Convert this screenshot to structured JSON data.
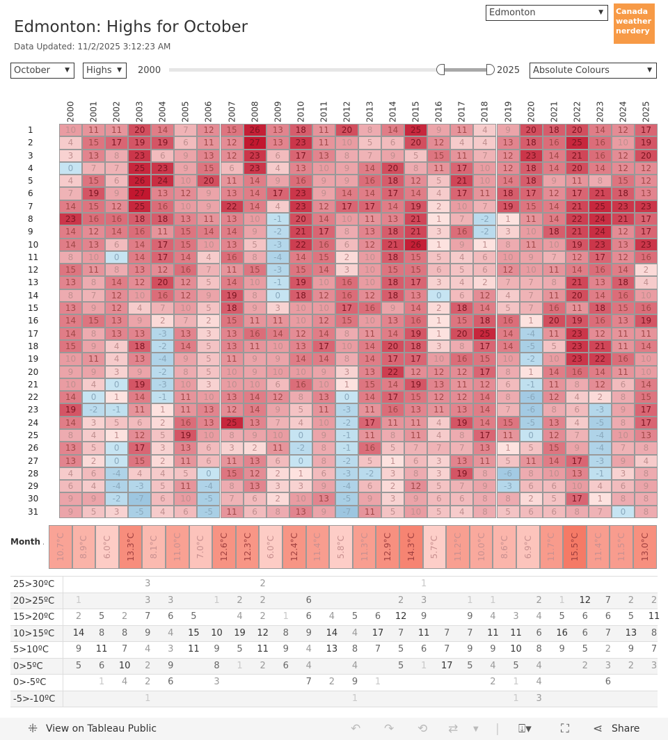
{
  "header": {
    "title": "Edmonton: Highs for October",
    "updated": "Data Updated: 11/2/2025 3:12:23 AM",
    "logo_text": "Canada weather nerdery",
    "logo_color": "#f79a46"
  },
  "controls": {
    "city": "Edmonton",
    "month": "October",
    "measure": "Highs",
    "slider_min_label": "2000",
    "slider_max_label": "2025",
    "colour_mode": "Absolute Colours"
  },
  "years": [
    "2000",
    "2001",
    "2002",
    "2003",
    "2004",
    "2005",
    "2006",
    "2007",
    "2008",
    "2009",
    "2010",
    "2011",
    "2012",
    "2013",
    "2014",
    "2015",
    "2016",
    "2017",
    "2018",
    "2019",
    "2020",
    "2021",
    "2022",
    "2023",
    "2024",
    "2025"
  ],
  "days": [
    "1",
    "2",
    "3",
    "4",
    "5",
    "6",
    "7",
    "8",
    "9",
    "10",
    "11",
    "12",
    "13",
    "14",
    "15",
    "16",
    "17",
    "18",
    "19",
    "20",
    "21",
    "22",
    "23",
    "24",
    "25",
    "26",
    "27",
    "28",
    "29",
    "30",
    "31"
  ],
  "heatmap": [
    [
      10,
      11,
      11,
      20,
      14,
      7,
      12,
      15,
      26,
      13,
      18,
      11,
      20,
      8,
      14,
      25,
      9,
      11,
      4,
      9,
      20,
      18,
      20,
      14,
      12,
      17
    ],
    [
      4,
      15,
      17,
      19,
      19,
      6,
      11,
      12,
      27,
      13,
      23,
      11,
      10,
      5,
      6,
      20,
      12,
      4,
      4,
      13,
      18,
      16,
      25,
      16,
      10,
      19
    ],
    [
      3,
      13,
      8,
      23,
      6,
      9,
      13,
      12,
      23,
      6,
      17,
      13,
      8,
      7,
      9,
      5,
      15,
      11,
      7,
      12,
      23,
      14,
      21,
      16,
      12,
      20
    ],
    [
      0,
      7,
      7,
      25,
      23,
      9,
      15,
      6,
      23,
      4,
      13,
      10,
      9,
      14,
      20,
      8,
      11,
      17,
      10,
      12,
      18,
      14,
      20,
      14,
      12,
      12
    ],
    [
      4,
      15,
      6,
      26,
      24,
      10,
      20,
      11,
      14,
      9,
      16,
      9,
      9,
      16,
      18,
      12,
      5,
      21,
      10,
      14,
      18,
      9,
      11,
      8,
      15,
      12
    ],
    [
      7,
      19,
      9,
      27,
      13,
      12,
      9,
      13,
      14,
      17,
      23,
      9,
      14,
      14,
      17,
      14,
      4,
      17,
      11,
      18,
      17,
      12,
      17,
      21,
      18,
      13
    ],
    [
      14,
      15,
      12,
      25,
      16,
      10,
      9,
      22,
      14,
      4,
      23,
      12,
      17,
      17,
      14,
      19,
      2,
      10,
      7,
      19,
      15,
      14,
      21,
      25,
      23,
      23
    ],
    [
      23,
      16,
      16,
      18,
      18,
      13,
      11,
      13,
      10,
      -1,
      20,
      14,
      10,
      11,
      13,
      21,
      1,
      7,
      -2,
      1,
      11,
      14,
      22,
      24,
      21,
      17
    ],
    [
      14,
      12,
      14,
      16,
      11,
      15,
      14,
      14,
      9,
      -2,
      21,
      17,
      8,
      13,
      18,
      21,
      3,
      16,
      -2,
      3,
      10,
      18,
      21,
      24,
      12,
      17
    ],
    [
      14,
      13,
      6,
      14,
      17,
      15,
      10,
      13,
      5,
      -3,
      22,
      16,
      6,
      12,
      21,
      26,
      1,
      9,
      1,
      8,
      11,
      10,
      19,
      23,
      13,
      23
    ],
    [
      8,
      10,
      0,
      14,
      17,
      14,
      4,
      16,
      8,
      -4,
      14,
      15,
      2,
      10,
      18,
      15,
      5,
      4,
      6,
      10,
      9,
      7,
      12,
      17,
      12,
      16
    ],
    [
      15,
      11,
      8,
      13,
      12,
      16,
      7,
      11,
      15,
      -3,
      15,
      14,
      3,
      10,
      15,
      15,
      6,
      5,
      6,
      12,
      10,
      11,
      14,
      16,
      14,
      2
    ],
    [
      13,
      8,
      14,
      12,
      20,
      12,
      5,
      14,
      10,
      -1,
      19,
      10,
      16,
      10,
      18,
      17,
      3,
      4,
      2,
      7,
      7,
      8,
      21,
      13,
      18,
      4
    ],
    [
      8,
      7,
      12,
      10,
      16,
      12,
      9,
      19,
      8,
      0,
      18,
      12,
      16,
      12,
      18,
      13,
      0,
      6,
      12,
      4,
      7,
      11,
      20,
      14,
      16,
      10
    ],
    [
      13,
      9,
      12,
      4,
      7,
      10,
      5,
      18,
      9,
      3,
      10,
      10,
      17,
      16,
      9,
      14,
      2,
      18,
      14,
      5,
      7,
      16,
      11,
      18,
      15,
      16
    ],
    [
      14,
      15,
      13,
      9,
      2,
      7,
      2,
      15,
      11,
      11,
      10,
      12,
      15,
      10,
      13,
      16,
      1,
      15,
      18,
      16,
      1,
      20,
      19,
      16,
      13,
      19
    ],
    [
      14,
      8,
      13,
      13,
      -3,
      13,
      3,
      13,
      16,
      14,
      12,
      14,
      8,
      11,
      14,
      19,
      1,
      20,
      25,
      14,
      -4,
      11,
      23,
      12,
      11,
      11
    ],
    [
      15,
      9,
      4,
      18,
      -2,
      14,
      5,
      13,
      11,
      10,
      13,
      17,
      10,
      14,
      20,
      18,
      3,
      8,
      17,
      14,
      -5,
      5,
      23,
      21,
      11,
      14
    ],
    [
      10,
      11,
      4,
      13,
      -4,
      9,
      5,
      11,
      9,
      9,
      14,
      14,
      8,
      14,
      17,
      17,
      10,
      16,
      15,
      10,
      -2,
      10,
      23,
      22,
      16,
      10
    ],
    [
      9,
      9,
      3,
      9,
      -2,
      8,
      5,
      10,
      9,
      10,
      10,
      9,
      3,
      13,
      22,
      12,
      12,
      12,
      17,
      8,
      1,
      14,
      16,
      14,
      11,
      10
    ],
    [
      10,
      4,
      0,
      19,
      -3,
      10,
      3,
      10,
      10,
      6,
      16,
      10,
      1,
      15,
      14,
      19,
      13,
      11,
      12,
      6,
      -1,
      11,
      8,
      12,
      6,
      14
    ],
    [
      14,
      0,
      1,
      14,
      -1,
      11,
      10,
      13,
      14,
      12,
      8,
      13,
      0,
      14,
      17,
      15,
      12,
      12,
      14,
      8,
      -6,
      12,
      4,
      2,
      8,
      15
    ],
    [
      19,
      -2,
      -1,
      11,
      1,
      11,
      13,
      12,
      14,
      9,
      5,
      11,
      -3,
      11,
      16,
      13,
      11,
      13,
      14,
      7,
      -6,
      8,
      6,
      -3,
      9,
      17
    ],
    [
      14,
      3,
      5,
      6,
      2,
      16,
      13,
      25,
      13,
      7,
      4,
      10,
      -2,
      17,
      11,
      11,
      4,
      19,
      14,
      15,
      -5,
      13,
      4,
      -5,
      8,
      17
    ],
    [
      8,
      4,
      1,
      12,
      5,
      19,
      10,
      8,
      9,
      10,
      0,
      9,
      -1,
      11,
      8,
      11,
      4,
      8,
      17,
      11,
      0,
      12,
      7,
      -4,
      10,
      13
    ],
    [
      13,
      5,
      0,
      17,
      3,
      13,
      6,
      3,
      2,
      11,
      -2,
      8,
      -1,
      16,
      5,
      7,
      7,
      7,
      13,
      1,
      5,
      15,
      9,
      -4,
      7,
      8
    ],
    [
      13,
      2,
      0,
      15,
      2,
      11,
      6,
      11,
      13,
      6,
      0,
      8,
      -2,
      5,
      1,
      6,
      3,
      13,
      11,
      5,
      11,
      14,
      17,
      -3,
      9,
      4
    ],
    [
      4,
      6,
      -4,
      4,
      4,
      5,
      0,
      15,
      12,
      2,
      1,
      6,
      -3,
      -2,
      3,
      8,
      3,
      19,
      8,
      -6,
      8,
      10,
      13,
      -1,
      3,
      8
    ],
    [
      6,
      4,
      -4,
      -3,
      5,
      11,
      -4,
      8,
      13,
      3,
      3,
      9,
      -4,
      6,
      2,
      12,
      5,
      7,
      9,
      -3,
      6,
      6,
      10,
      4,
      6,
      9
    ],
    [
      9,
      9,
      -2,
      -7,
      6,
      10,
      -5,
      7,
      6,
      2,
      10,
      13,
      -5,
      9,
      3,
      9,
      6,
      6,
      8,
      8,
      2,
      5,
      17,
      1,
      8,
      8
    ],
    [
      9,
      5,
      3,
      -5,
      4,
      6,
      -5,
      11,
      6,
      8,
      13,
      9,
      -7,
      11,
      5,
      10,
      5,
      4,
      8,
      5,
      6,
      6,
      8,
      7,
      0,
      8
    ]
  ],
  "averages": {
    "label": "Month Average",
    "values": [
      "10.7°C",
      "8.9°C",
      "6.0°C",
      "13.3°C",
      "8.1°C",
      "11.0°C",
      "7.0°C",
      "12.6°C",
      "12.3°C",
      "6.0°C",
      "12.4°C",
      "11.4°C",
      "5.8°C",
      "11.3°C",
      "12.9°C",
      "14.3°C",
      "5.7°C",
      "11.2°C",
      "10.0°C",
      "8.6°C",
      "6.9°C",
      "11.7°C",
      "15.5°C",
      "11.4°C",
      "11.5°C",
      "13.0°C"
    ]
  },
  "distribution": [
    {
      "label": "25>30ºC",
      "counts": [
        null,
        null,
        null,
        3,
        null,
        null,
        null,
        null,
        2,
        null,
        null,
        null,
        null,
        null,
        null,
        1,
        null,
        null,
        null,
        null,
        null,
        null,
        null,
        null,
        null,
        null
      ]
    },
    {
      "label": "20>25ºC",
      "counts": [
        1,
        null,
        null,
        3,
        3,
        null,
        1,
        2,
        2,
        null,
        6,
        null,
        null,
        null,
        2,
        3,
        null,
        1,
        1,
        null,
        2,
        1,
        12,
        7,
        2,
        2
      ]
    },
    {
      "label": "15>20ºC",
      "counts": [
        2,
        5,
        2,
        7,
        6,
        5,
        null,
        4,
        2,
        1,
        6,
        4,
        5,
        6,
        12,
        9,
        null,
        9,
        4,
        3,
        4,
        5,
        6,
        6,
        5,
        11
      ]
    },
    {
      "label": "10>15ºC",
      "counts": [
        14,
        8,
        8,
        9,
        4,
        15,
        10,
        19,
        12,
        8,
        9,
        14,
        4,
        17,
        7,
        11,
        7,
        7,
        11,
        11,
        6,
        16,
        6,
        7,
        13,
        8
      ]
    },
    {
      "label": "5>10ºC",
      "counts": [
        9,
        11,
        7,
        4,
        3,
        11,
        9,
        5,
        11,
        9,
        4,
        13,
        8,
        7,
        5,
        6,
        7,
        9,
        9,
        10,
        8,
        9,
        5,
        2,
        9,
        7
      ]
    },
    {
      "label": "0>5ºC",
      "counts": [
        5,
        6,
        10,
        2,
        9,
        null,
        8,
        1,
        2,
        6,
        4,
        null,
        4,
        null,
        5,
        1,
        17,
        5,
        4,
        5,
        4,
        null,
        2,
        3,
        2,
        3
      ]
    },
    {
      "label": "0>-5ºC",
      "counts": [
        null,
        1,
        4,
        2,
        6,
        null,
        3,
        null,
        null,
        null,
        7,
        2,
        9,
        1,
        null,
        null,
        null,
        null,
        2,
        1,
        4,
        null,
        null,
        6,
        null,
        null
      ]
    },
    {
      "label": "-5>-10ºC",
      "counts": [
        null,
        null,
        null,
        1,
        null,
        null,
        null,
        null,
        null,
        null,
        null,
        null,
        1,
        null,
        null,
        null,
        null,
        null,
        null,
        1,
        3,
        null,
        null,
        null,
        null,
        null
      ]
    }
  ],
  "colors": {
    "warm_max": "#c2172f",
    "warm_min": "#fde2df",
    "cold_light": "#c6e4f2",
    "cold_dark": "#9dc6e0"
  },
  "footer": {
    "view_label": "View on Tableau Public",
    "share_label": "Share"
  }
}
